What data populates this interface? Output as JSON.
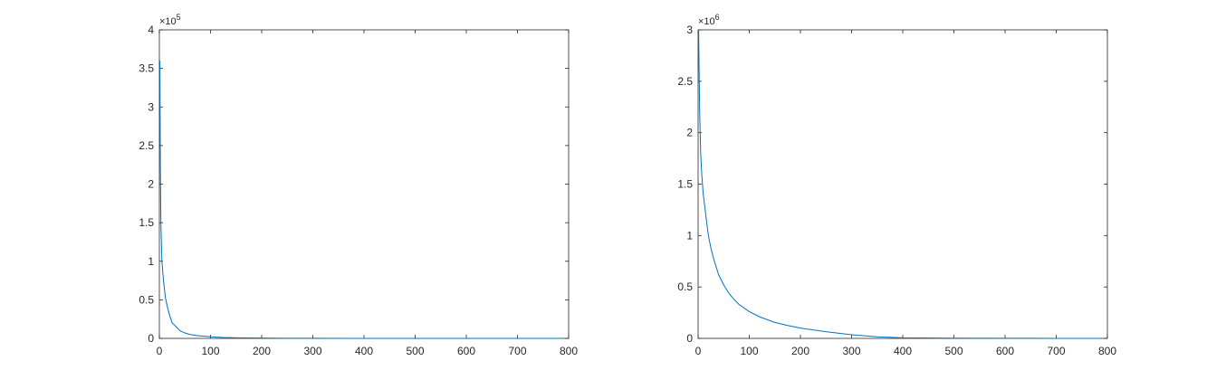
{
  "chart_data": [
    {
      "type": "line",
      "title": "",
      "xlabel": "",
      "ylabel": "",
      "xlim": [
        0,
        800
      ],
      "ylim": [
        0,
        4
      ],
      "y_exponent_label": "×10",
      "y_exponent": "5",
      "x_ticks": [
        0,
        100,
        200,
        300,
        400,
        500,
        600,
        700,
        800
      ],
      "x_tick_labels": [
        "0",
        "100",
        "200",
        "300",
        "400",
        "500",
        "600",
        "700",
        "800"
      ],
      "y_ticks": [
        0,
        0.5,
        1,
        1.5,
        2,
        2.5,
        3,
        3.5,
        4
      ],
      "y_tick_labels": [
        "0",
        "0.5",
        "1",
        "1.5",
        "2",
        "2.5",
        "3",
        "3.5",
        "4"
      ],
      "grid": false,
      "line_color": "#0072BD",
      "series": [
        {
          "x": [
            1,
            2,
            3,
            5,
            8,
            12,
            16,
            20,
            25,
            30,
            40,
            50,
            60,
            75,
            100,
            125,
            150,
            200,
            250,
            300,
            400,
            500,
            600,
            700,
            785
          ],
          "y": [
            3.6,
            2.2,
            1.5,
            1.0,
            0.75,
            0.52,
            0.4,
            0.3,
            0.2,
            0.17,
            0.1,
            0.07,
            0.05,
            0.035,
            0.02,
            0.012,
            0.008,
            0.004,
            0.002,
            0.001,
            0.0005,
            0.0003,
            0.0002,
            0.0001,
            0.0001
          ]
        }
      ]
    },
    {
      "type": "line",
      "title": "",
      "xlabel": "",
      "ylabel": "",
      "xlim": [
        0,
        800
      ],
      "ylim": [
        0,
        3
      ],
      "y_exponent_label": "×10",
      "y_exponent": "6",
      "x_ticks": [
        0,
        100,
        200,
        300,
        400,
        500,
        600,
        700,
        800
      ],
      "x_tick_labels": [
        "0",
        "100",
        "200",
        "300",
        "400",
        "500",
        "600",
        "700",
        "800"
      ],
      "y_ticks": [
        0,
        0.5,
        1,
        1.5,
        2,
        2.5,
        3
      ],
      "y_tick_labels": [
        "0",
        "0.5",
        "1",
        "1.5",
        "2",
        "2.5",
        "3"
      ],
      "grid": false,
      "line_color": "#0072BD",
      "series": [
        {
          "x": [
            1,
            2,
            3,
            5,
            7,
            10,
            15,
            20,
            25,
            30,
            40,
            50,
            60,
            70,
            80,
            100,
            120,
            150,
            175,
            200,
            250,
            300,
            350,
            400,
            500,
            600,
            700,
            785
          ],
          "y": [
            3.0,
            2.6,
            2.2,
            1.8,
            1.6,
            1.4,
            1.2,
            1.0,
            0.88,
            0.78,
            0.62,
            0.52,
            0.44,
            0.38,
            0.33,
            0.26,
            0.21,
            0.155,
            0.125,
            0.1,
            0.065,
            0.035,
            0.015,
            0.005,
            0.002,
            0.001,
            0.0005,
            0.0003
          ]
        }
      ]
    }
  ]
}
